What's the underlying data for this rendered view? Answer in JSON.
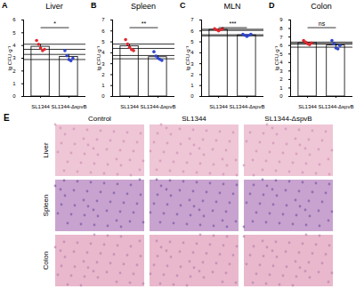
{
  "chart_data": [
    {
      "type": "bar",
      "panel": "A",
      "title": "Liver",
      "categories": [
        "SL1344",
        "SL1344-ΔspvB"
      ],
      "values": [
        3.9,
        3.1
      ],
      "errors": [
        0.2,
        0.2
      ],
      "points": [
        [
          4.4,
          4.1,
          3.8,
          3.6,
          3.7
        ],
        [
          3.6,
          3.2,
          2.9,
          2.8,
          3.0
        ]
      ],
      "colors": [
        "#e0282e",
        "#2f45d0"
      ],
      "ylabel": "lg CFU·g⁻¹",
      "ylim": [
        0,
        6
      ],
      "yticks": [
        0,
        1,
        2,
        3,
        4,
        5,
        6
      ],
      "annotation": "*"
    },
    {
      "type": "bar",
      "panel": "B",
      "title": "Spleen",
      "categories": [
        "SL1344",
        "SL1344-ΔspvB"
      ],
      "values": [
        4.6,
        3.6
      ],
      "errors": [
        0.2,
        0.15
      ],
      "points": [
        [
          5.2,
          4.8,
          4.5,
          4.3,
          4.2
        ],
        [
          4.1,
          3.7,
          3.5,
          3.4,
          3.3
        ]
      ],
      "colors": [
        "#e0282e",
        "#2f45d0"
      ],
      "ylabel": "lg CFU·g⁻¹",
      "ylim": [
        0,
        7
      ],
      "yticks": [
        0,
        1,
        2,
        3,
        4,
        5,
        6,
        7
      ],
      "annotation": "**"
    },
    {
      "type": "bar",
      "panel": "C",
      "title": "MLN",
      "categories": [
        "SL1344",
        "SL1344-ΔspvB"
      ],
      "values": [
        6.1,
        5.6
      ],
      "errors": [
        0.05,
        0.05
      ],
      "points": [
        [
          6.2,
          6.1,
          6.0,
          6.1,
          6.2
        ],
        [
          5.7,
          5.6,
          5.5,
          5.6,
          5.7
        ]
      ],
      "colors": [
        "#e0282e",
        "#2f45d0"
      ],
      "ylabel": "lg CFU·g⁻¹",
      "ylim": [
        0,
        7
      ],
      "yticks": [
        0,
        1,
        2,
        3,
        4,
        5,
        6,
        7
      ],
      "annotation": "***"
    },
    {
      "type": "bar",
      "panel": "D",
      "title": "Colon",
      "categories": [
        "SL1344",
        "SL1344-ΔspvB"
      ],
      "values": [
        6.3,
        6.0
      ],
      "errors": [
        0.1,
        0.2
      ],
      "points": [
        [
          6.6,
          6.4,
          6.2,
          6.1,
          6.3
        ],
        [
          6.6,
          6.2,
          5.7,
          5.6,
          6.0
        ]
      ],
      "colors": [
        "#e0282e",
        "#2f45d0"
      ],
      "ylabel": "lg CFU·g⁻¹",
      "ylim": [
        0,
        9
      ],
      "yticks": [
        0,
        1,
        2,
        3,
        4,
        5,
        6,
        7,
        8,
        9
      ],
      "annotation": "ns"
    }
  ],
  "histology": {
    "panel": "E",
    "columns": [
      "Control",
      "SL1344",
      "SL1344-ΔspvB"
    ],
    "rows": [
      "Liver",
      "Spleen",
      "Colon"
    ]
  }
}
